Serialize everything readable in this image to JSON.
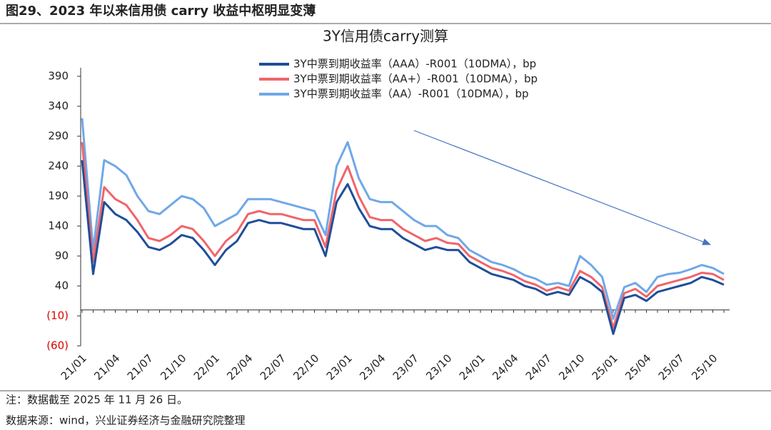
{
  "figure_title": "图29、2023 年以来信用债 carry 收益中枢明显变薄",
  "note": "注：数据截至 2025 年 11 月 26 日。",
  "source": "数据来源：wind，兴业证券经济与金融研究院整理",
  "chart_data": {
    "type": "line",
    "title": "3Y信用债carry测算",
    "categories": [
      "21/01",
      null,
      null,
      "21/04",
      null,
      null,
      "21/07",
      null,
      null,
      "21/10",
      null,
      null,
      "22/01",
      null,
      null,
      "22/04",
      null,
      null,
      "22/07",
      null,
      null,
      "22/10",
      null,
      null,
      "23/01",
      null,
      null,
      "23/04",
      null,
      null,
      "23/07",
      null,
      null,
      "23/10",
      null,
      null,
      "24/01",
      null,
      null,
      "24/04",
      null,
      null,
      "24/07",
      null,
      null,
      "24/10",
      null,
      null,
      "25/01",
      null,
      null,
      "25/04",
      null,
      null,
      "25/07",
      null,
      null,
      "25/10",
      null
    ],
    "series": [
      {
        "name": "3Y中票到期收益率（AAA）-R001（10DMA），bp",
        "color": "#1f4e99",
        "values": [
          250,
          60,
          180,
          160,
          150,
          130,
          105,
          100,
          110,
          125,
          120,
          100,
          75,
          100,
          115,
          145,
          150,
          145,
          145,
          140,
          135,
          135,
          90,
          180,
          210,
          170,
          140,
          135,
          135,
          120,
          110,
          100,
          105,
          100,
          100,
          80,
          70,
          60,
          55,
          50,
          40,
          35,
          25,
          30,
          25,
          55,
          45,
          30,
          -40,
          20,
          25,
          15,
          30,
          35,
          40,
          45,
          55,
          50,
          42
        ]
      },
      {
        "name": "3Y中票到期收益率（AA+）-R001（10DMA），bp",
        "color": "#f0646a",
        "values": [
          280,
          80,
          205,
          185,
          175,
          150,
          120,
          115,
          125,
          140,
          135,
          115,
          90,
          115,
          130,
          160,
          165,
          160,
          160,
          155,
          150,
          150,
          105,
          200,
          240,
          190,
          155,
          150,
          150,
          135,
          125,
          115,
          120,
          112,
          110,
          90,
          80,
          70,
          65,
          58,
          48,
          42,
          32,
          38,
          32,
          65,
          55,
          38,
          -30,
          28,
          35,
          22,
          40,
          45,
          50,
          55,
          62,
          60,
          50
        ]
      },
      {
        "name": "3Y中票到期收益率（AA）-R001（10DMA），bp",
        "color": "#6fa8e8",
        "values": [
          320,
          100,
          250,
          240,
          225,
          190,
          165,
          160,
          175,
          190,
          185,
          170,
          140,
          150,
          160,
          185,
          185,
          185,
          180,
          175,
          170,
          165,
          125,
          240,
          280,
          220,
          185,
          180,
          180,
          165,
          150,
          140,
          140,
          125,
          120,
          100,
          90,
          80,
          75,
          68,
          58,
          52,
          42,
          45,
          40,
          90,
          75,
          55,
          -15,
          38,
          45,
          30,
          55,
          60,
          62,
          68,
          75,
          70,
          60
        ]
      }
    ],
    "ylim": [
      -60,
      390
    ],
    "yticks": [
      {
        "value": -60,
        "label": "(60)"
      },
      {
        "value": -10,
        "label": "(10)"
      },
      40,
      90,
      140,
      190,
      240,
      290,
      340,
      390
    ],
    "negative_tick_color": "#e00000",
    "legend": "top",
    "grid": false
  }
}
